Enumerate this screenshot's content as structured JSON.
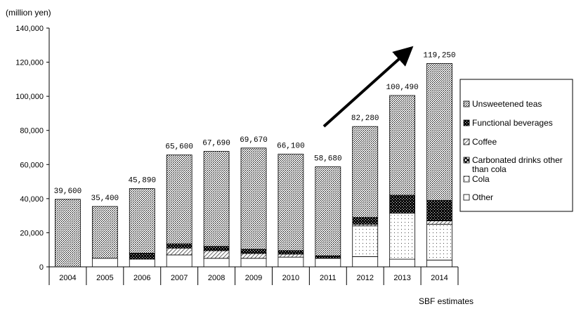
{
  "chart_data": {
    "type": "bar",
    "stacked": true,
    "unit_label": "(million yen)",
    "source_note": "SBF estimates",
    "categories": [
      "2004",
      "2005",
      "2006",
      "2007",
      "2008",
      "2009",
      "2010",
      "2011",
      "2012",
      "2013",
      "2014"
    ],
    "totals": [
      39600,
      35400,
      45890,
      65600,
      67690,
      69670,
      66100,
      58680,
      82280,
      100490,
      119250
    ],
    "total_labels": [
      "39,600",
      "35,400",
      "45,890",
      "65,600",
      "67,690",
      "69,670",
      "66,100",
      "58,680",
      "82,280",
      "100,490",
      "119,250"
    ],
    "series": [
      {
        "name": "Other",
        "values": [
          0,
          5000,
          4500,
          7000,
          5000,
          5000,
          5700,
          5000,
          6000,
          4500,
          4000
        ]
      },
      {
        "name": "Cola",
        "values": [
          0,
          0,
          0,
          0,
          0,
          0,
          0,
          0,
          18000,
          27000,
          21000
        ]
      },
      {
        "name": "Carbonated drinks other than cola",
        "values": [
          0,
          0,
          0,
          0,
          0,
          0,
          0,
          0,
          0,
          0,
          0
        ]
      },
      {
        "name": "Coffee",
        "values": [
          0,
          0,
          0,
          4000,
          4500,
          2800,
          1800,
          0,
          1000,
          0,
          2000
        ]
      },
      {
        "name": "Functional beverages",
        "values": [
          0,
          0,
          3500,
          2500,
          2500,
          2500,
          2000,
          1500,
          4000,
          10500,
          12000
        ]
      },
      {
        "name": "Unsweetened teas",
        "values": [
          39600,
          30400,
          37890,
          52100,
          55690,
          59370,
          56600,
          52180,
          53280,
          58490,
          80250
        ]
      }
    ],
    "y_ticks": [
      "0",
      "20,000",
      "40,000",
      "60,000",
      "80,000",
      "100,000",
      "120,000",
      "140,000"
    ],
    "ylim": [
      0,
      140000
    ],
    "legend_order": [
      "Unsweetened teas",
      "Functional beverages",
      "Coffee",
      "Carbonated drinks other than cola",
      "Cola",
      "Other"
    ],
    "legend_position": "right",
    "grid": false
  }
}
